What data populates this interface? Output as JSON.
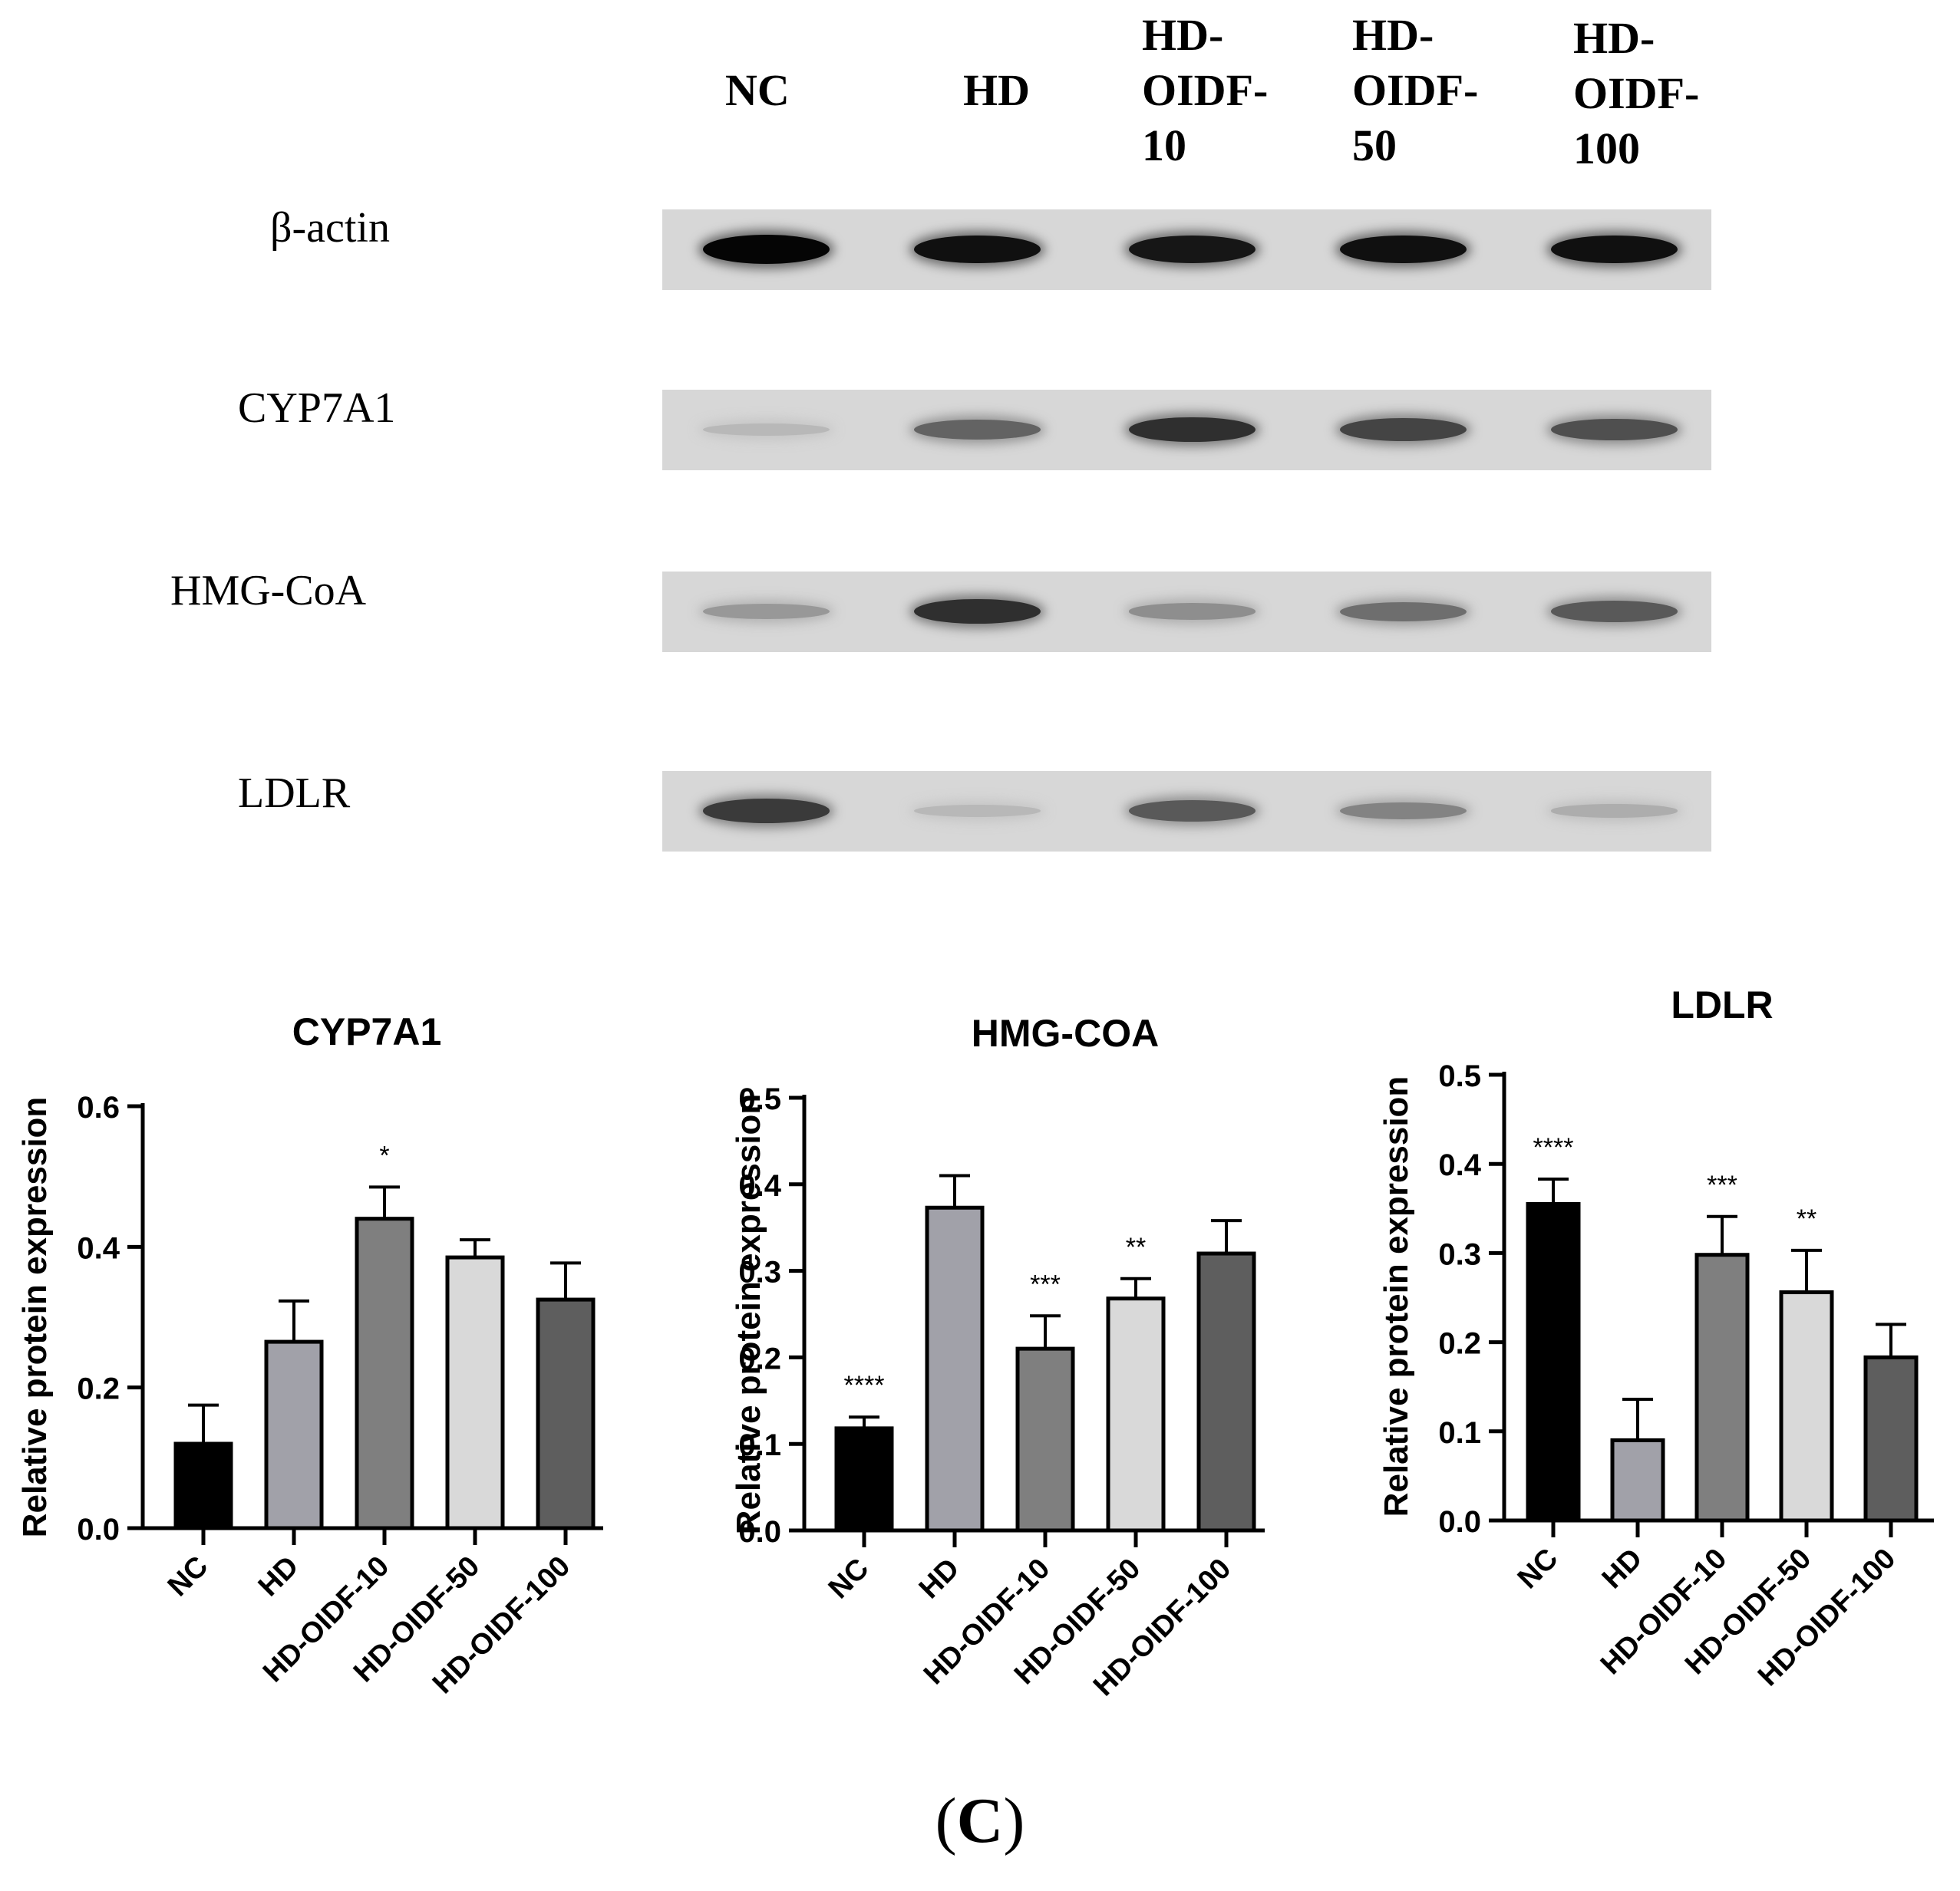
{
  "blot": {
    "lanes": [
      "NC",
      "HD",
      "HD-\nOIDF-\n10",
      "HD-\nOIDF-\n50",
      "HD-\nOIDF-\n100"
    ],
    "rows": [
      {
        "label": "β-actin",
        "intensity": [
          1.0,
          0.95,
          0.92,
          0.95,
          0.95
        ]
      },
      {
        "label": "CYP7A1",
        "intensity": [
          0.15,
          0.55,
          0.8,
          0.7,
          0.65
        ]
      },
      {
        "label": "HMG-CoA",
        "intensity": [
          0.3,
          0.8,
          0.35,
          0.5,
          0.6
        ]
      },
      {
        "label": "LDLR",
        "intensity": [
          0.75,
          0.15,
          0.6,
          0.4,
          0.2
        ]
      }
    ]
  },
  "chart_data": [
    {
      "type": "bar",
      "title": "CYP7A1",
      "ylabel": "Relative protein expression",
      "categories": [
        "NC",
        "HD",
        "HD-OIDF-10",
        "HD-OIDF-50",
        "HD-OIDF-100"
      ],
      "values": [
        0.12,
        0.265,
        0.44,
        0.385,
        0.325
      ],
      "errors": [
        0.055,
        0.058,
        0.045,
        0.025,
        0.052
      ],
      "significance": [
        "",
        "",
        "*",
        "",
        ""
      ],
      "ylim": [
        0,
        0.6
      ],
      "yticks": [
        "0.0",
        "0.2",
        "0.4",
        "0.6"
      ],
      "colors": [
        "#000000",
        "#a1a1a9",
        "#7f7f7f",
        "#d9d9d9",
        "#5e5e5e"
      ]
    },
    {
      "type": "bar",
      "title": "HMG-COA",
      "ylabel": "Relative protein expression",
      "categories": [
        "NC",
        "HD",
        "HD-OIDF-10",
        "HD-OIDF-50",
        "HD-OIDF-100"
      ],
      "values": [
        0.118,
        0.373,
        0.21,
        0.268,
        0.32
      ],
      "errors": [
        0.013,
        0.037,
        0.038,
        0.023,
        0.038
      ],
      "significance": [
        "****",
        "",
        "***",
        "**",
        ""
      ],
      "ylim": [
        0,
        0.5
      ],
      "yticks": [
        "0.0",
        "0.1",
        "0.2",
        "0.3",
        "0.4",
        "0.5"
      ],
      "colors": [
        "#000000",
        "#a1a1a9",
        "#7f7f7f",
        "#d9d9d9",
        "#5e5e5e"
      ]
    },
    {
      "type": "bar",
      "title": "LDLR",
      "ylabel": "Relative protein expression",
      "categories": [
        "NC",
        "HD",
        "HD-OIDF-10",
        "HD-OIDF-50",
        "HD-OIDF-100"
      ],
      "values": [
        0.355,
        0.09,
        0.298,
        0.256,
        0.183
      ],
      "errors": [
        0.028,
        0.046,
        0.043,
        0.047,
        0.037
      ],
      "significance": [
        "****",
        "",
        "***",
        "**",
        ""
      ],
      "ylim": [
        0,
        0.5
      ],
      "yticks": [
        "0.0",
        "0.1",
        "0.2",
        "0.3",
        "0.4",
        "0.5"
      ],
      "colors": [
        "#000000",
        "#a1a1a9",
        "#7f7f7f",
        "#d9d9d9",
        "#5e5e5e"
      ]
    }
  ],
  "panel": {
    "open": "(",
    "letter": "C",
    "close": ")"
  }
}
